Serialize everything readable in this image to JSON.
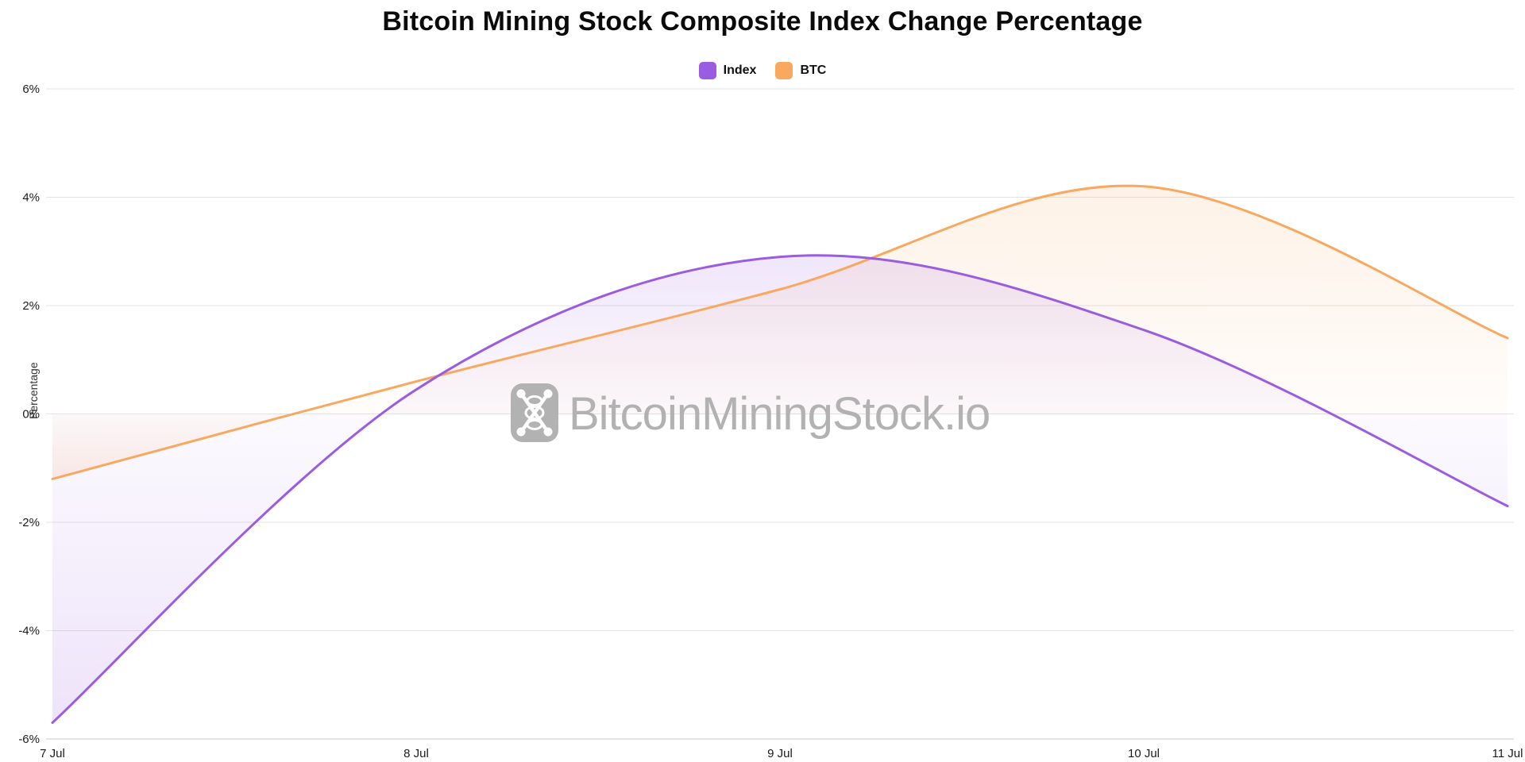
{
  "title": "Bitcoin Mining Stock Composite Index Change Percentage",
  "watermark": {
    "text": "BitcoinMiningStock.io"
  },
  "legend": [
    {
      "label": "Index",
      "color": "#9A5CE0"
    },
    {
      "label": "BTC",
      "color": "#F9A85F"
    }
  ],
  "chart_data": {
    "type": "line",
    "x": [
      "7 Jul",
      "8 Jul",
      "9 Jul",
      "10 Jul",
      "11 Jul"
    ],
    "series": [
      {
        "name": "Index",
        "color": "#9A5CE0",
        "values": [
          -5.7,
          0.45,
          2.9,
          1.55,
          -1.7
        ]
      },
      {
        "name": "BTC",
        "color": "#F9A85F",
        "values": [
          -1.2,
          0.6,
          2.3,
          4.2,
          1.4
        ]
      }
    ],
    "title": "Bitcoin Mining Stock Composite Index Change Percentage",
    "xlabel": "",
    "ylabel": "Percentage",
    "ylim": [
      -6,
      6
    ],
    "yticks": [
      6,
      4,
      2,
      0,
      -2,
      -4,
      -6
    ],
    "ytick_suffix": "%",
    "grid": true,
    "legend_position": "top",
    "smooth": true,
    "fill": "to-zero-baseline",
    "grid_color": "#e3e3e3",
    "axis_line_color": "#c9c9c9"
  }
}
